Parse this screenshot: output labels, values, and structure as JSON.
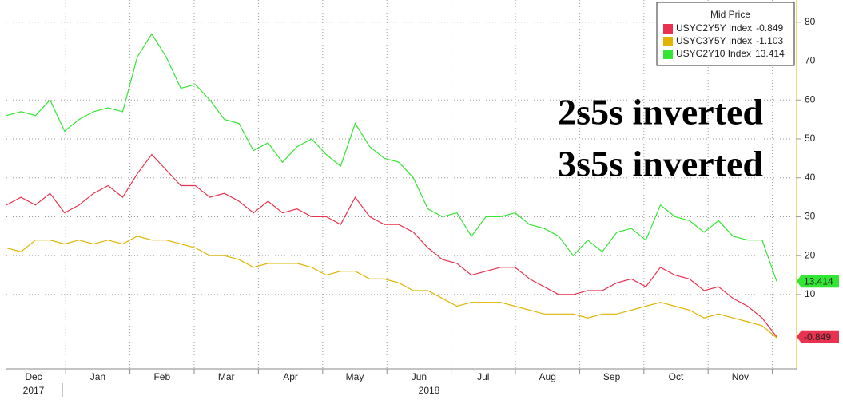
{
  "chart_data": {
    "type": "line",
    "annotations": [
      "2s5s inverted",
      "3s5s inverted"
    ],
    "legend_title": "Mid Price",
    "months": [
      "Dec",
      "Jan",
      "Feb",
      "Mar",
      "Apr",
      "May",
      "Jun",
      "Jul",
      "Aug",
      "Sep",
      "Oct",
      "Nov"
    ],
    "years": [
      "2017",
      "2018"
    ],
    "ylim": [
      -9.1,
      85.7
    ],
    "yticks": [
      10,
      20,
      30,
      40,
      50,
      60,
      70,
      80
    ],
    "grid": true,
    "legend": "upper right",
    "series": [
      {
        "name": "USYC2Y5Y Index",
        "color": "#e8324f",
        "values": [
          33,
          35,
          33,
          36,
          31,
          33,
          36,
          38,
          35,
          41,
          46,
          42,
          38,
          38,
          35,
          36,
          34,
          31,
          34,
          31,
          32,
          30,
          30,
          28,
          35,
          30,
          28,
          28,
          26,
          22,
          19,
          18,
          15,
          16,
          17,
          17,
          14,
          12,
          10,
          10,
          11,
          11,
          13,
          14,
          12,
          17,
          15,
          14,
          11,
          12,
          9,
          7,
          4,
          -0.849
        ]
      },
      {
        "name": "USYC3Y5Y Index",
        "color": "#e0b400",
        "values": [
          22,
          21,
          24,
          24,
          23,
          24,
          23,
          24,
          23,
          25,
          24,
          24,
          23,
          22,
          20,
          20,
          19,
          17,
          18,
          18,
          18,
          17,
          15,
          16,
          16,
          14,
          14,
          13,
          11,
          11,
          9,
          7,
          8,
          8,
          8,
          7,
          6,
          5,
          5,
          5,
          4,
          5,
          5,
          6,
          7,
          8,
          7,
          6,
          4,
          5,
          4,
          3,
          2,
          -1.103
        ]
      },
      {
        "name": "USYC2Y10 Index",
        "color": "#33e633",
        "values": [
          56,
          57,
          56,
          60,
          52,
          55,
          57,
          58,
          57,
          71,
          77,
          71,
          63,
          64,
          60,
          55,
          54,
          47,
          49,
          44,
          48,
          50,
          46,
          43,
          54,
          48,
          45,
          44,
          40,
          32,
          30,
          31,
          25,
          30,
          30,
          31,
          28,
          27,
          25,
          20,
          24,
          21,
          26,
          27,
          24,
          33,
          30,
          29,
          26,
          29,
          25,
          24,
          24,
          13.414
        ]
      }
    ]
  }
}
